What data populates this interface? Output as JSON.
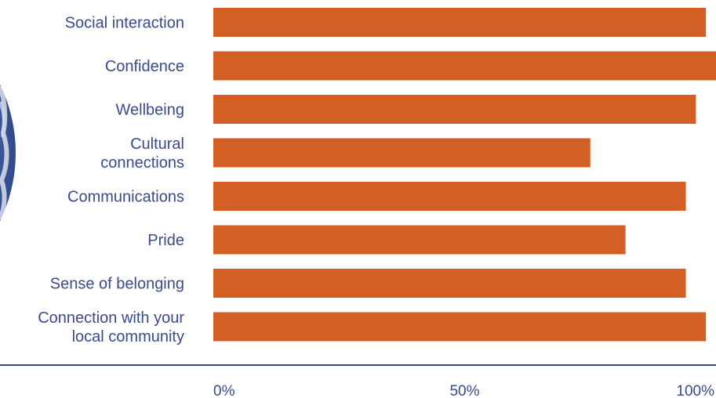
{
  "chart_data": {
    "type": "bar",
    "orientation": "horizontal",
    "categories": [
      "Social interaction",
      "Confidence",
      "Wellbeing",
      "Cultural connections",
      "Communications",
      "Pride",
      "Sense of belonging",
      "Connection with your local community"
    ],
    "category_lines": [
      [
        "Social interaction"
      ],
      [
        "Confidence"
      ],
      [
        "Wellbeing"
      ],
      [
        "Cultural",
        "connections"
      ],
      [
        "Communications"
      ],
      [
        "Pride"
      ],
      [
        "Sense of belonging"
      ],
      [
        "Connection with your",
        "local community"
      ]
    ],
    "values": [
      98,
      100,
      96,
      75,
      94,
      82,
      94,
      98
    ],
    "xlim": [
      0,
      100
    ],
    "x_ticks": [
      "0%",
      "50%",
      "100%"
    ],
    "x_tick_values": [
      0,
      50,
      100
    ],
    "grid": false,
    "legend": "none",
    "bar_color": "#d45f24",
    "label_color": "#3a4a8c",
    "axis_color": "#3a4a8c"
  }
}
